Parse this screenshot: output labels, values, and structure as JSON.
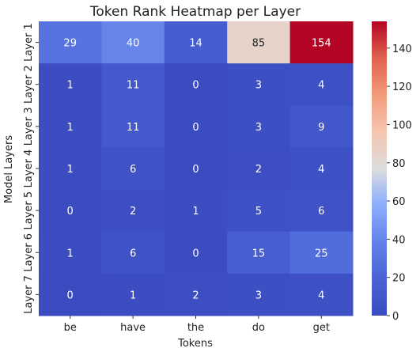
{
  "chart_data": {
    "type": "heatmap",
    "title": "Token Rank Heatmap per Layer",
    "xlabel": "Tokens",
    "ylabel": "Model Layers",
    "x_categories": [
      "be",
      "have",
      "the",
      "do",
      "get"
    ],
    "y_categories": [
      "Layer 1",
      "Layer 2",
      "Layer 3",
      "Layer 4",
      "Layer 5",
      "Layer 6",
      "Layer 7"
    ],
    "values": [
      [
        29,
        40,
        14,
        85,
        154
      ],
      [
        1,
        11,
        0,
        3,
        4
      ],
      [
        1,
        11,
        0,
        3,
        9
      ],
      [
        1,
        6,
        0,
        2,
        4
      ],
      [
        0,
        2,
        1,
        5,
        6
      ],
      [
        1,
        6,
        0,
        15,
        25
      ],
      [
        0,
        1,
        2,
        3,
        4
      ]
    ],
    "colormap": "coolwarm",
    "vmin": 0,
    "vmax": 154,
    "colorbar_ticks": [
      0,
      20,
      40,
      60,
      80,
      100,
      120,
      140
    ],
    "annotations": true,
    "grid": false,
    "legend": "colorbar-right"
  }
}
